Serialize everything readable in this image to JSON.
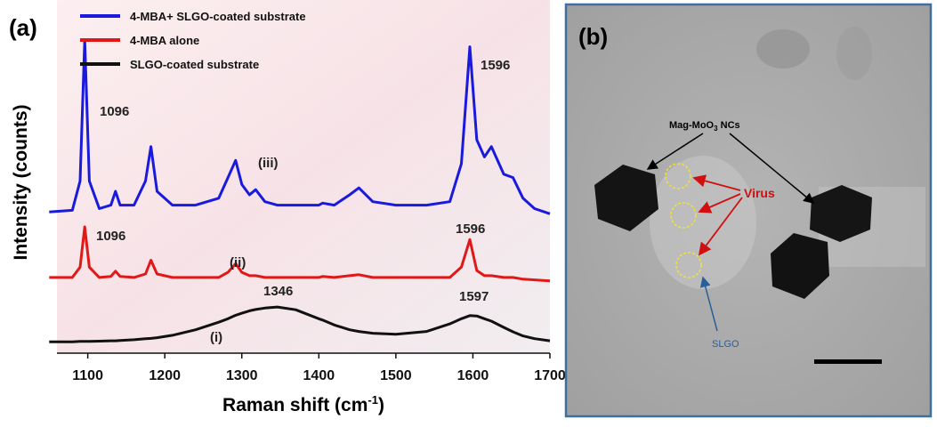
{
  "chart_data": {
    "type": "line",
    "panel_label": "(a)",
    "xlabel": [
      "Raman shift (cm",
      "-1",
      ")"
    ],
    "ylabel": "Intensity (counts)",
    "xlim": [
      1060,
      1700
    ],
    "xticks": [
      1100,
      1200,
      1300,
      1400,
      1500,
      1600,
      1700
    ],
    "ylim": [
      0,
      100
    ],
    "x": [
      1050,
      1080,
      1090,
      1096,
      1102,
      1115,
      1130,
      1136,
      1142,
      1160,
      1175,
      1182,
      1190,
      1210,
      1240,
      1270,
      1282,
      1292,
      1300,
      1310,
      1318,
      1330,
      1346,
      1370,
      1400,
      1405,
      1420,
      1440,
      1452,
      1470,
      1500,
      1540,
      1570,
      1585,
      1596,
      1605,
      1615,
      1624,
      1640,
      1652,
      1665,
      1680,
      1700
    ],
    "series": [
      {
        "name": "4-MBA+ SLGO-coated substrate",
        "color": "#1a1adc",
        "values": [
          41,
          41.5,
          50,
          91,
          50,
          42,
          43,
          47,
          43,
          43,
          50,
          60,
          47,
          43,
          43,
          45,
          51,
          56,
          49,
          46,
          47.5,
          44,
          43,
          43,
          43,
          43.6,
          43,
          46,
          48,
          44,
          43,
          43,
          44,
          55,
          89,
          62,
          57,
          60,
          52,
          51,
          45,
          42,
          40.5
        ]
      },
      {
        "name": "4-MBA alone",
        "color": "#e01818",
        "values": [
          22,
          22,
          25,
          36.7,
          25,
          22,
          22.3,
          23.8,
          22.3,
          22,
          23,
          27,
          23,
          22,
          22,
          22,
          23.5,
          26,
          23.5,
          22.5,
          22.5,
          22,
          22,
          22,
          22,
          22.3,
          22,
          22.5,
          22.8,
          22,
          22,
          22,
          22,
          25,
          33,
          24,
          22.5,
          22.5,
          22,
          22,
          21.5,
          21.3,
          21
        ]
      },
      {
        "name": "SLGO-coated substrate",
        "color": "#111111",
        "values": [
          3.3,
          3.3,
          3.4,
          3.4,
          3.4,
          3.5,
          3.6,
          3.6,
          3.7,
          3.9,
          4.2,
          4.3,
          4.5,
          5.2,
          6.8,
          9,
          10,
          11,
          11.6,
          12.3,
          12.7,
          13.1,
          13.4,
          12.6,
          10,
          9.6,
          8.2,
          6.8,
          6.3,
          5.8,
          5.5,
          6.3,
          8.5,
          10,
          10.9,
          10.8,
          10,
          9.3,
          7.5,
          6.2,
          5,
          4.2,
          3.6
        ]
      }
    ],
    "annotations": [
      "1096",
      "1596",
      "(iii)",
      "1096",
      "1596",
      "(ii)",
      "1346",
      "1597",
      "(i)"
    ]
  },
  "panel_b": {
    "panel_label": "(b)",
    "nc_label": [
      "Mag-MoO",
      "3",
      " NCs"
    ],
    "virus_label": "Virus",
    "slgo_label": "SLGO"
  }
}
